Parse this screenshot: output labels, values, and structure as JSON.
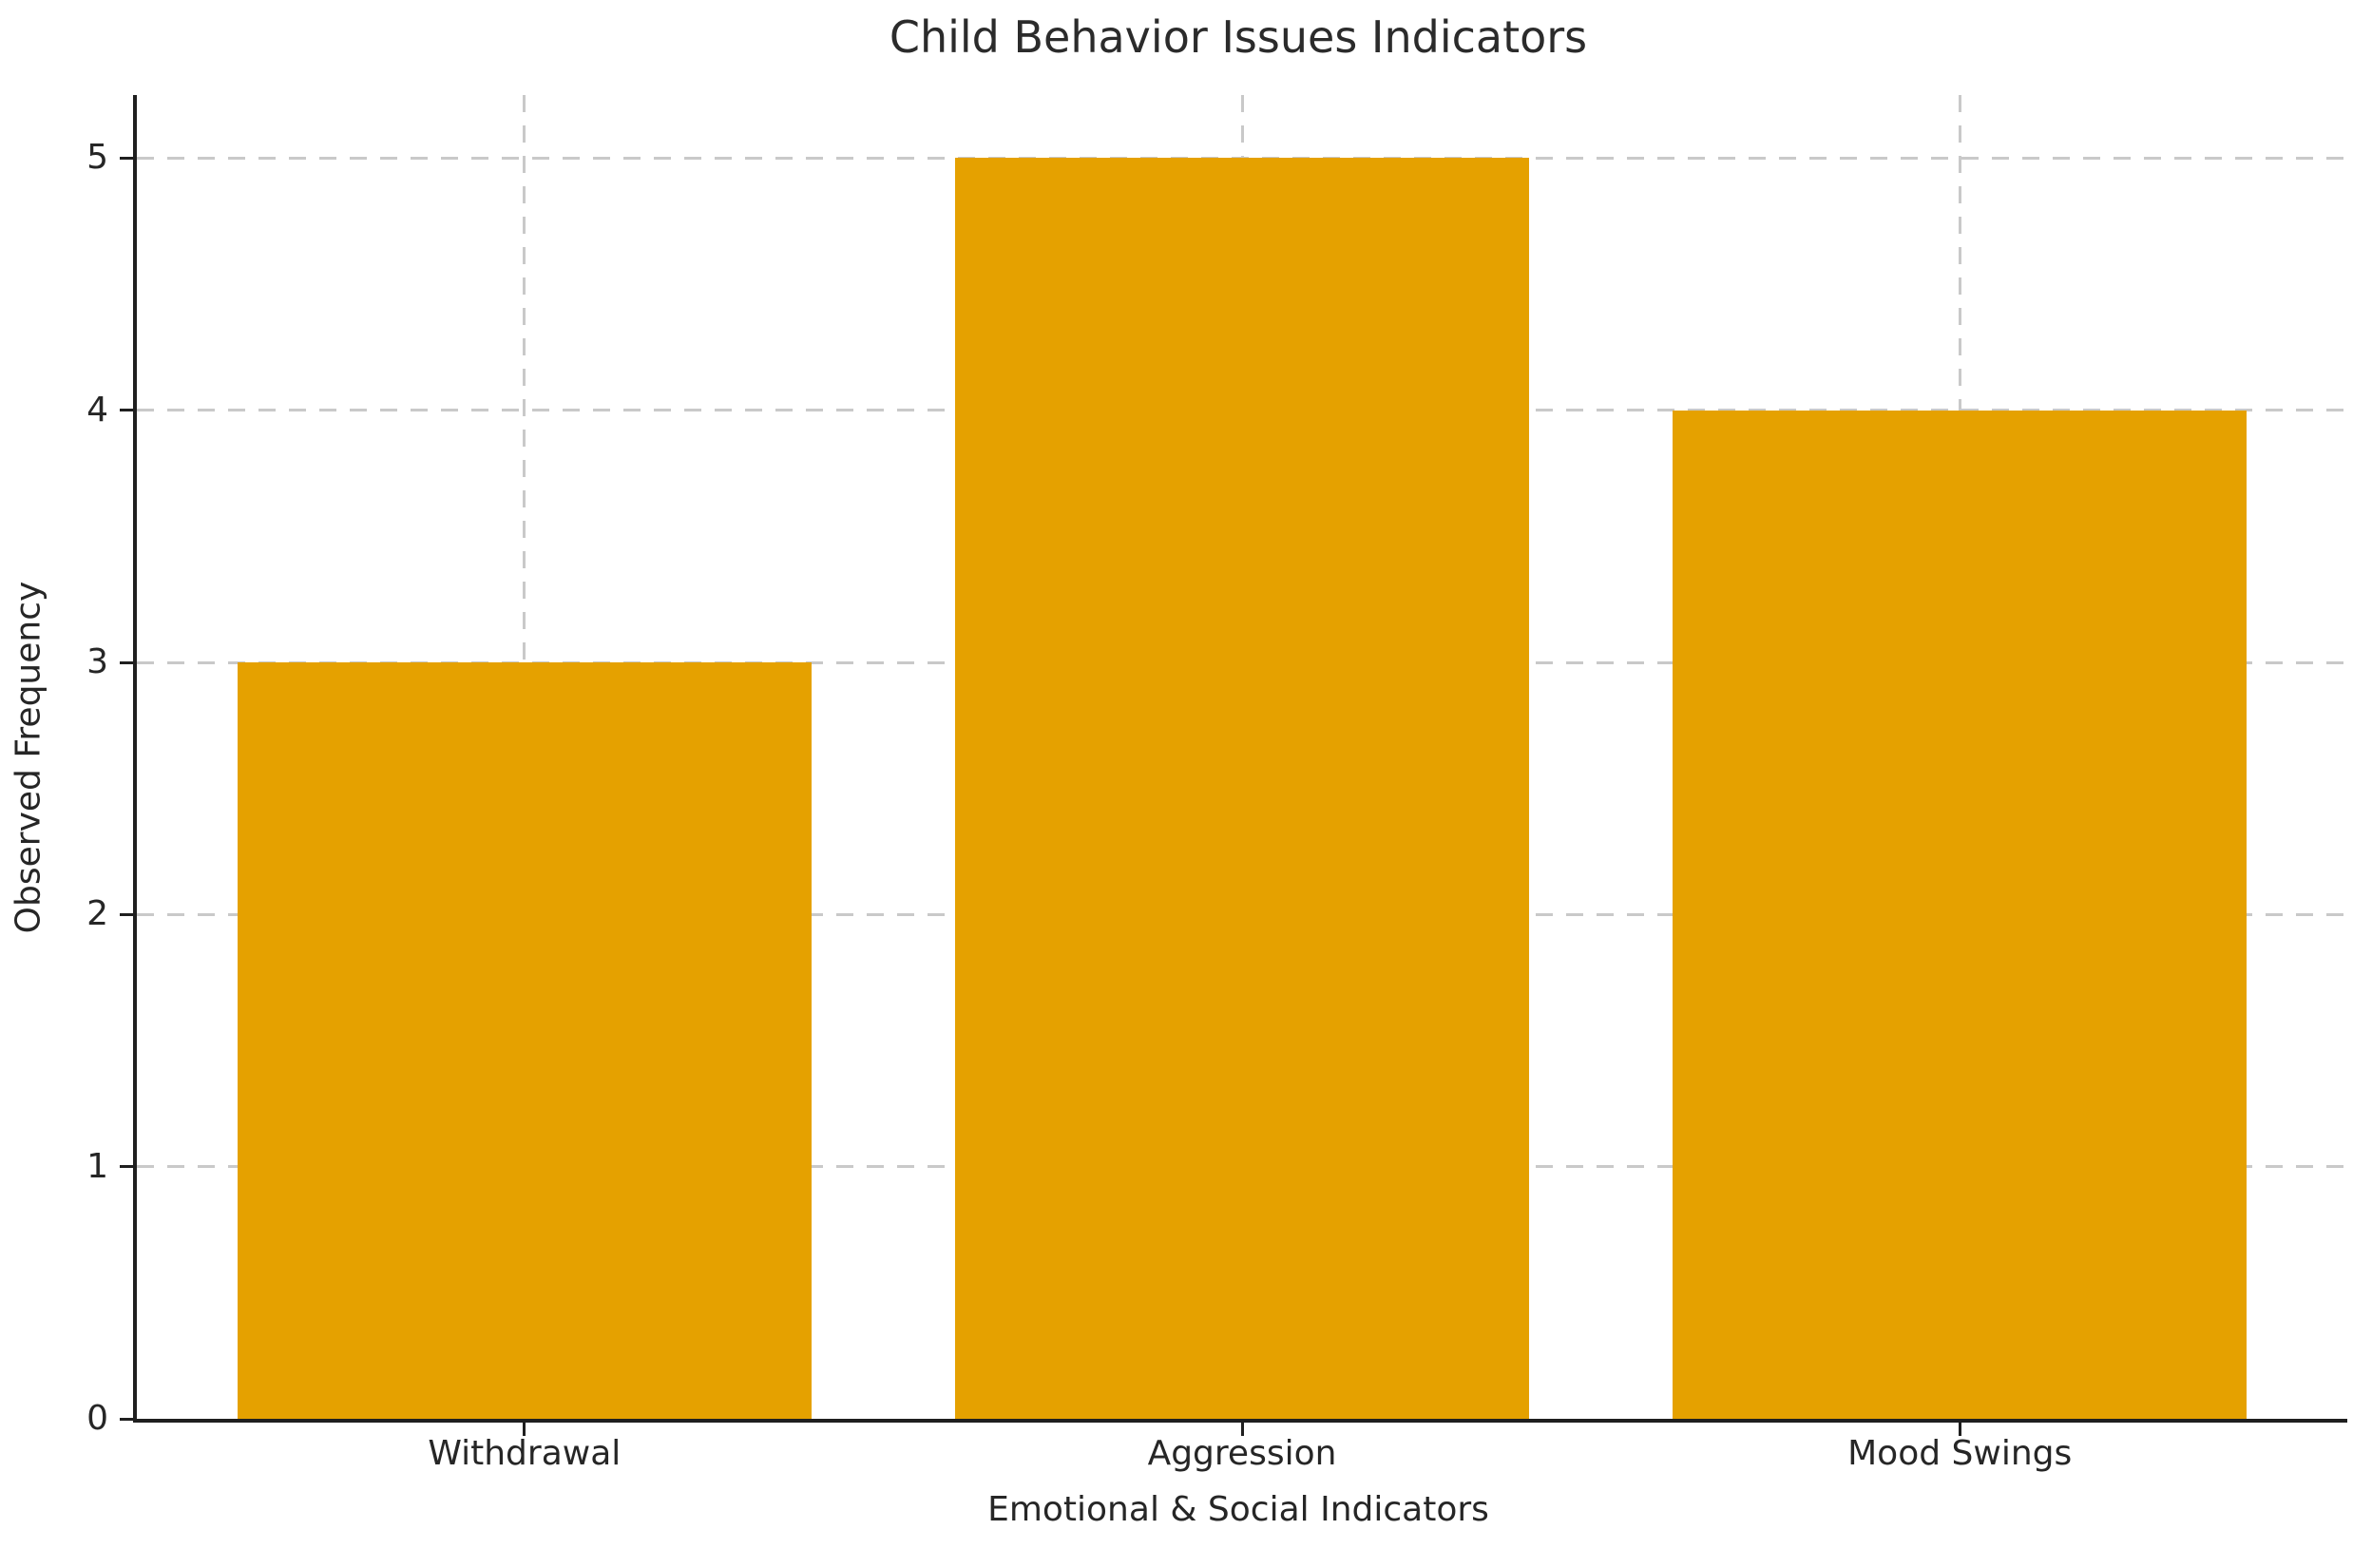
{
  "chart_data": {
    "type": "bar",
    "title": "Child Behavior Issues Indicators",
    "xlabel": "Emotional & Social Indicators",
    "ylabel": "Observed Frequency",
    "categories": [
      "Withdrawal",
      "Aggression",
      "Mood Swings"
    ],
    "values": [
      3,
      5,
      4
    ],
    "yticks": [
      0,
      1,
      2,
      3,
      4,
      5
    ],
    "ylim": [
      0,
      5.25
    ],
    "xlim": [
      -0.54,
      2.54
    ],
    "bar_width": 0.8,
    "bar_color": "#E5A100",
    "grid": {
      "visible": true,
      "axis": "both",
      "style": "dashed",
      "color": "#c9c9c9"
    },
    "spine_color": "#1f1f1f",
    "text_color": "#262626",
    "background_color": "#ffffff",
    "legend": null
  }
}
